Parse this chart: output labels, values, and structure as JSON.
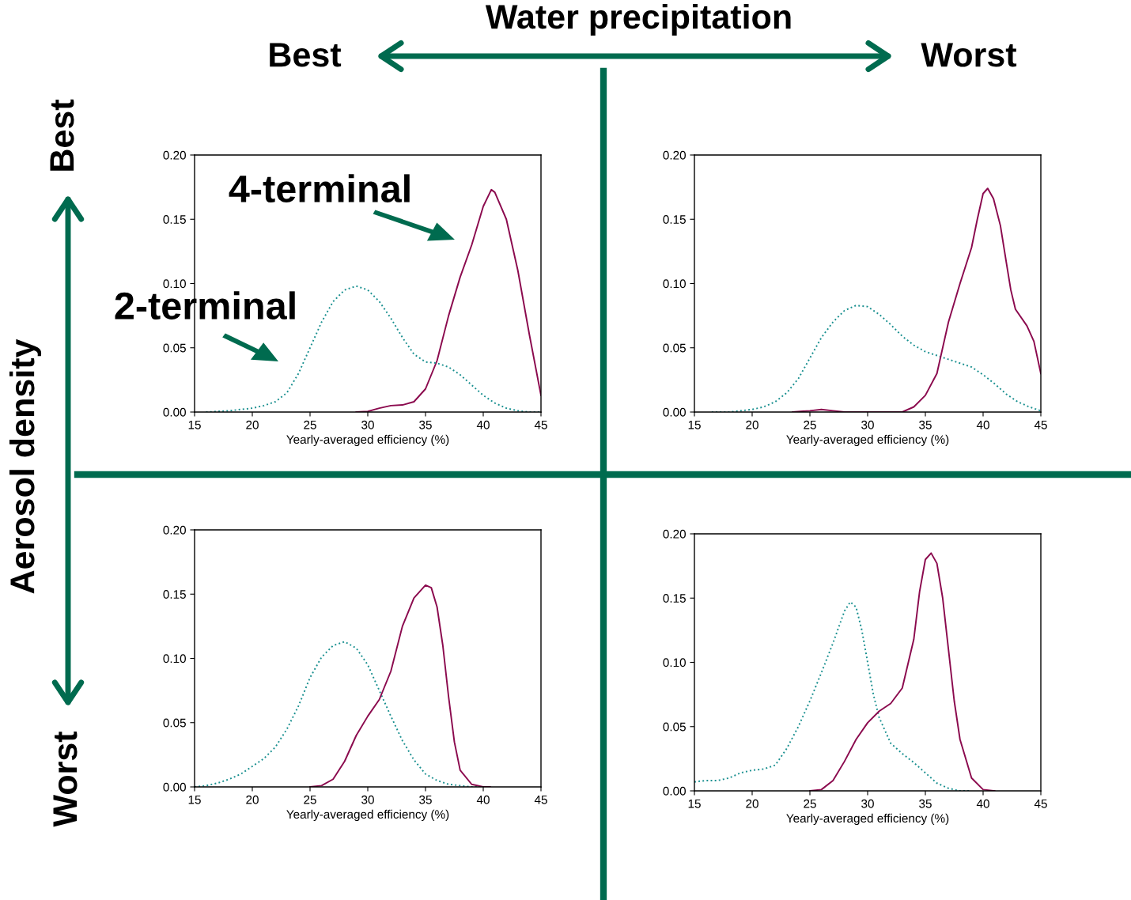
{
  "chart_data": [
    {
      "type": "line",
      "xlabel": "Yearly-averaged efficiency (%)",
      "xlim": [
        15,
        45
      ],
      "xticks": [
        15,
        20,
        25,
        30,
        35,
        40,
        45
      ],
      "ylim": [
        0,
        0.2
      ],
      "yticks": [
        {
          "value": 0,
          "label": "0.00"
        },
        {
          "value": 0.05,
          "label": "0.05"
        },
        {
          "value": 0.1,
          "label": "0.10"
        },
        {
          "value": 0.15,
          "label": "0.15"
        },
        {
          "value": 0.2,
          "label": "0.20"
        }
      ],
      "grid": false,
      "legend": false,
      "series": [
        {
          "name": "4-terminal",
          "color": "#8b0a4e",
          "line_style": "solid",
          "x": [
            29,
            30,
            31,
            32,
            33,
            34,
            35,
            36,
            37,
            38,
            39,
            40,
            40.7,
            41,
            42,
            43,
            44,
            45
          ],
          "values": [
            0,
            0.0005,
            0.003,
            0.005,
            0.0055,
            0.008,
            0.018,
            0.04,
            0.075,
            0.105,
            0.13,
            0.16,
            0.173,
            0.171,
            0.15,
            0.11,
            0.06,
            0.013
          ]
        },
        {
          "name": "2-terminal",
          "color": "#1a9090",
          "line_style": "dotted",
          "x": [
            16,
            18,
            20,
            21,
            22,
            23,
            24,
            25,
            26,
            27,
            28,
            29,
            30,
            31,
            32,
            33,
            34,
            35,
            36,
            37,
            38,
            39,
            40,
            41,
            42,
            43,
            44,
            45
          ],
          "values": [
            0,
            0.001,
            0.003,
            0.005,
            0.008,
            0.015,
            0.03,
            0.05,
            0.07,
            0.086,
            0.095,
            0.098,
            0.095,
            0.086,
            0.073,
            0.058,
            0.045,
            0.039,
            0.038,
            0.035,
            0.029,
            0.021,
            0.013,
            0.007,
            0.003,
            0.001,
            0,
            0
          ]
        }
      ]
    },
    {
      "type": "line",
      "xlabel": "Yearly-averaged efficiency (%)",
      "xlim": [
        15,
        45
      ],
      "xticks": [
        15,
        20,
        25,
        30,
        35,
        40,
        45
      ],
      "ylim": [
        0,
        0.2
      ],
      "yticks": [
        {
          "value": 0,
          "label": "0.00"
        },
        {
          "value": 0.05,
          "label": "0.05"
        },
        {
          "value": 0.1,
          "label": "0.10"
        },
        {
          "value": 0.15,
          "label": "0.15"
        },
        {
          "value": 0.2,
          "label": "0.20"
        }
      ],
      "grid": false,
      "legend": false,
      "series": [
        {
          "color": "#1a9090",
          "line_style": "dotted",
          "x": [
            16.5,
            18,
            20,
            21,
            22,
            23,
            24,
            25,
            26,
            27,
            28,
            29,
            30,
            31,
            32,
            33,
            34,
            35,
            36,
            37,
            38,
            39,
            40,
            41,
            42,
            43,
            44,
            45
          ],
          "values": [
            0,
            0,
            0.002,
            0.004,
            0.008,
            0.015,
            0.026,
            0.042,
            0.058,
            0.07,
            0.079,
            0.083,
            0.082,
            0.076,
            0.068,
            0.059,
            0.052,
            0.047,
            0.044,
            0.041,
            0.038,
            0.035,
            0.029,
            0.022,
            0.014,
            0.008,
            0.004,
            0.001
          ]
        },
        {
          "color": "#8b0a4e",
          "line_style": "solid",
          "x": [
            23.5,
            25,
            26,
            27,
            28,
            33,
            34,
            35,
            36,
            37,
            38,
            39,
            39.5,
            40,
            40.4,
            40.9,
            41.5,
            42,
            42.4,
            42.8,
            43.8,
            44.4,
            45
          ],
          "values": [
            0,
            0.001,
            0.002,
            0.001,
            0,
            0,
            0.004,
            0.013,
            0.03,
            0.07,
            0.1,
            0.128,
            0.15,
            0.17,
            0.174,
            0.166,
            0.145,
            0.117,
            0.095,
            0.08,
            0.067,
            0.055,
            0.03
          ]
        }
      ]
    },
    {
      "type": "line",
      "xlabel": "Yearly-averaged efficiency (%)",
      "xlim": [
        15,
        45
      ],
      "xticks": [
        15,
        20,
        25,
        30,
        35,
        40,
        45
      ],
      "ylim": [
        0,
        0.2
      ],
      "yticks": [
        {
          "value": 0,
          "label": "0.00"
        },
        {
          "value": 0.05,
          "label": "0.05"
        },
        {
          "value": 0.1,
          "label": "0.10"
        },
        {
          "value": 0.15,
          "label": "0.15"
        },
        {
          "value": 0.2,
          "label": "0.20"
        }
      ],
      "grid": false,
      "legend": false,
      "series": [
        {
          "color": "#1a9090",
          "line_style": "dotted",
          "x": [
            15,
            16,
            17,
            18,
            19,
            20,
            21,
            22,
            23,
            24,
            25,
            26,
            27,
            28,
            29,
            30,
            31,
            32,
            33,
            34,
            35,
            36,
            37,
            38,
            39,
            40
          ],
          "values": [
            0,
            0.001,
            0.003,
            0.006,
            0.01,
            0.016,
            0.022,
            0.031,
            0.045,
            0.063,
            0.085,
            0.101,
            0.11,
            0.113,
            0.108,
            0.095,
            0.075,
            0.055,
            0.036,
            0.021,
            0.01,
            0.005,
            0.002,
            0.001,
            0,
            0
          ]
        },
        {
          "color": "#8b0a4e",
          "line_style": "solid",
          "x": [
            25,
            26,
            27,
            28,
            29,
            30,
            31,
            32,
            33,
            34,
            35,
            35.5,
            36,
            36.5,
            37,
            37.5,
            38,
            39,
            40,
            40.6
          ],
          "values": [
            0,
            0.001,
            0.006,
            0.02,
            0.04,
            0.055,
            0.068,
            0.09,
            0.125,
            0.147,
            0.157,
            0.155,
            0.14,
            0.11,
            0.07,
            0.035,
            0.013,
            0.002,
            0,
            0
          ]
        }
      ]
    },
    {
      "type": "line",
      "xlabel": "Yearly-averaged efficiency (%)",
      "xlim": [
        15,
        45
      ],
      "xticks": [
        15,
        20,
        25,
        30,
        35,
        40,
        45
      ],
      "ylim": [
        0,
        0.2
      ],
      "yticks": [
        {
          "value": 0,
          "label": "0.00"
        },
        {
          "value": 0.05,
          "label": "0.05"
        },
        {
          "value": 0.1,
          "label": "0.10"
        },
        {
          "value": 0.15,
          "label": "0.15"
        },
        {
          "value": 0.2,
          "label": "0.20"
        }
      ],
      "grid": false,
      "legend": false,
      "series": [
        {
          "color": "#1a9090",
          "line_style": "dotted",
          "x": [
            15,
            16,
            17,
            18,
            19,
            20,
            21,
            22,
            23,
            24,
            25,
            26,
            27,
            28,
            28.5,
            29,
            29.5,
            30,
            30.5,
            31,
            32,
            33,
            34,
            35,
            36,
            37,
            38,
            38.8
          ],
          "values": [
            0.007,
            0.008,
            0.008,
            0.01,
            0.014,
            0.016,
            0.017,
            0.02,
            0.033,
            0.05,
            0.07,
            0.092,
            0.115,
            0.14,
            0.147,
            0.143,
            0.125,
            0.1,
            0.075,
            0.057,
            0.037,
            0.029,
            0.022,
            0.014,
            0.006,
            0.002,
            0,
            0
          ]
        },
        {
          "color": "#8b0a4e",
          "line_style": "solid",
          "x": [
            25,
            26,
            27,
            28,
            29,
            30,
            31,
            32,
            33,
            34,
            34.5,
            35,
            35.5,
            36,
            36.5,
            37,
            37.5,
            38,
            39,
            40,
            41
          ],
          "values": [
            0,
            0.001,
            0.008,
            0.023,
            0.04,
            0.053,
            0.062,
            0.068,
            0.08,
            0.118,
            0.155,
            0.18,
            0.185,
            0.177,
            0.15,
            0.11,
            0.07,
            0.04,
            0.01,
            0.001,
            0
          ]
        }
      ]
    },
    {
      "type": "other",
      "annotations": [
        "Water precipitation",
        "Best",
        "Worst",
        "Aerosol density",
        "Best",
        "Worst"
      ]
    }
  ]
}
